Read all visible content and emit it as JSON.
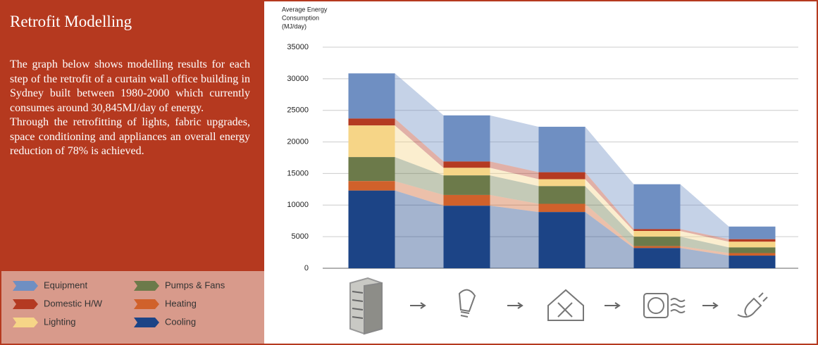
{
  "panel": {
    "title": "Retrofit Modelling",
    "paragraphs": [
      "The graph below shows modelling results for each step of the retrofit of a curtain wall office building in Sydney built between 1980-2000 which currently consumes around 30,845MJ/day of energy.",
      "Through the retrofitting of lights, fabric upgrades, space conditioning and appliances an overall energy reduction of 78% is achieved."
    ]
  },
  "chart_data": {
    "type": "stacked_bar",
    "ylabel": [
      "Average Energy",
      "Consumption",
      "(MJ/day)"
    ],
    "ylim": [
      0,
      35000
    ],
    "yticks": [
      0,
      5000,
      10000,
      15000,
      20000,
      25000,
      30000,
      35000
    ],
    "grid": true,
    "series": [
      {
        "name": "Equipment",
        "color": "#6f8fc2",
        "values": [
          7150,
          7300,
          7200,
          7100,
          2000
        ]
      },
      {
        "name": "Domestic H/W",
        "color": "#b43a22",
        "values": [
          1100,
          1000,
          1100,
          300,
          400
        ]
      },
      {
        "name": "Lighting",
        "color": "#f6d587",
        "values": [
          5000,
          1200,
          1100,
          900,
          900
        ]
      },
      {
        "name": "Pumps & Fans",
        "color": "#6c7a4a",
        "values": [
          3800,
          3100,
          2800,
          1500,
          900
        ]
      },
      {
        "name": "Heating",
        "color": "#d0612b",
        "values": [
          1500,
          1700,
          1300,
          300,
          400
        ]
      },
      {
        "name": "Cooling",
        "color": "#1c4486",
        "values": [
          12300,
          9900,
          8900,
          3200,
          2000
        ]
      }
    ]
  }
}
